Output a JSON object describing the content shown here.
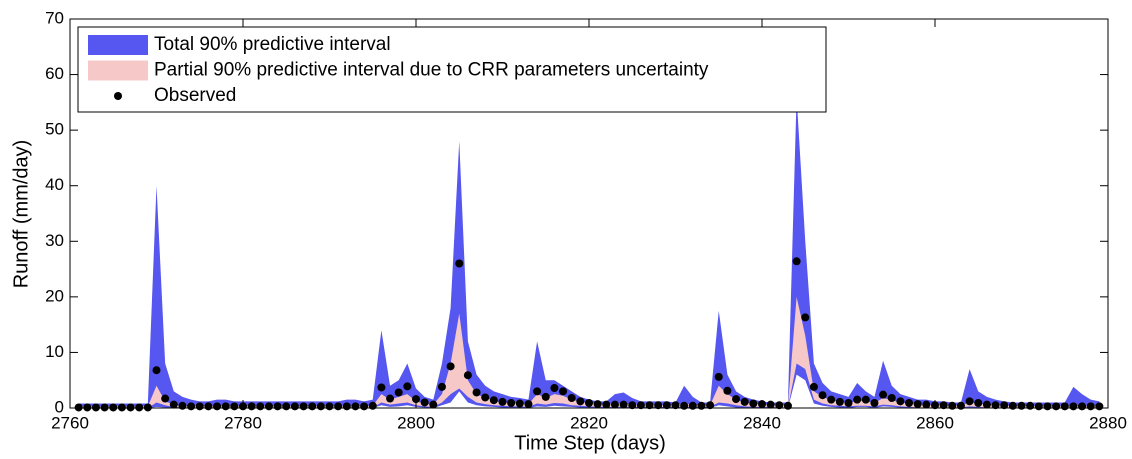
{
  "chart_data": {
    "type": "band",
    "xlabel": "Time Step (days)",
    "ylabel": "Runoff (mm/day)",
    "xlim": [
      2760,
      2880
    ],
    "ylim": [
      0,
      70
    ],
    "xticks": [
      2760,
      2780,
      2800,
      2820,
      2840,
      2860,
      2880
    ],
    "yticks": [
      0,
      10,
      20,
      30,
      40,
      50,
      60,
      70
    ],
    "grid": false,
    "legend": "upper-left",
    "x": [
      2761,
      2762,
      2763,
      2764,
      2765,
      2766,
      2767,
      2768,
      2769,
      2770,
      2771,
      2772,
      2773,
      2774,
      2775,
      2776,
      2777,
      2778,
      2779,
      2780,
      2781,
      2782,
      2783,
      2784,
      2785,
      2786,
      2787,
      2788,
      2789,
      2790,
      2791,
      2792,
      2793,
      2794,
      2795,
      2796,
      2797,
      2798,
      2799,
      2800,
      2801,
      2802,
      2803,
      2804,
      2805,
      2806,
      2807,
      2808,
      2809,
      2810,
      2811,
      2812,
      2813,
      2814,
      2815,
      2816,
      2817,
      2818,
      2819,
      2820,
      2821,
      2822,
      2823,
      2824,
      2825,
      2826,
      2827,
      2828,
      2829,
      2830,
      2831,
      2832,
      2833,
      2834,
      2835,
      2836,
      2837,
      2838,
      2839,
      2840,
      2841,
      2842,
      2843,
      2844,
      2845,
      2846,
      2847,
      2848,
      2849,
      2850,
      2851,
      2852,
      2853,
      2854,
      2855,
      2856,
      2857,
      2858,
      2859,
      2860,
      2861,
      2862,
      2863,
      2864,
      2865,
      2866,
      2867,
      2868,
      2869,
      2870,
      2871,
      2872,
      2873,
      2874,
      2875,
      2876,
      2877,
      2878,
      2879
    ],
    "series": [
      {
        "name": "Total 90% predictive interval",
        "kind": "band",
        "color": "#5656f0",
        "upper": [
          0.8,
          0.8,
          0.8,
          0.8,
          0.8,
          0.8,
          0.8,
          0.8,
          0.8,
          40,
          8,
          3,
          2,
          1.5,
          1.2,
          1.2,
          1.5,
          1.5,
          1.2,
          1.2,
          1.2,
          1.2,
          1.2,
          1.2,
          1.2,
          1.2,
          1.2,
          1.2,
          1.2,
          1.2,
          1.2,
          1.5,
          1.5,
          1.2,
          1.5,
          14,
          4,
          5,
          8,
          3.5,
          2,
          1.5,
          8,
          18,
          48,
          12,
          6,
          4,
          3,
          2.5,
          2,
          1.8,
          1.5,
          12,
          5,
          5,
          4,
          3,
          2,
          1.5,
          1.2,
          1.2,
          2.5,
          2.8,
          1.8,
          1.2,
          1.2,
          1.2,
          1.2,
          1,
          4,
          2,
          1,
          1,
          17.5,
          6,
          3,
          2,
          1.5,
          1.2,
          1,
          1,
          1,
          56,
          30,
          8,
          4.5,
          3,
          2.5,
          2,
          4.5,
          3,
          2,
          8.5,
          4,
          2.5,
          2,
          1.5,
          1.5,
          1.2,
          1.2,
          1,
          1,
          7,
          3,
          2,
          1.5,
          1.2,
          1,
          1,
          1,
          1,
          1,
          1,
          1,
          3.8,
          2.5,
          1.5,
          1.2
        ],
        "lower": [
          0,
          0,
          0,
          0,
          0,
          0,
          0,
          0,
          0,
          0.2,
          0.1,
          0,
          0,
          0,
          0,
          0,
          0,
          0,
          0,
          0,
          0,
          0,
          0,
          0,
          0,
          0,
          0,
          0,
          0,
          0,
          0,
          0,
          0,
          0,
          0,
          0.5,
          0.2,
          0.3,
          0.5,
          0.2,
          0.1,
          0,
          0.5,
          1,
          3,
          1,
          0.5,
          0.3,
          0.2,
          0.1,
          0.1,
          0,
          0,
          0.3,
          0.2,
          0.4,
          0.3,
          0.2,
          0.1,
          0,
          0,
          0,
          0,
          0,
          0,
          0,
          0,
          0,
          0,
          0,
          0,
          0,
          0,
          0,
          0.5,
          0.3,
          0.1,
          0,
          0,
          0,
          0,
          0,
          0,
          6,
          5,
          0.8,
          0.4,
          0.2,
          0.1,
          0,
          0.2,
          0.2,
          0,
          0.3,
          0.2,
          0.1,
          0,
          0,
          0,
          0,
          0,
          0,
          0,
          0.1,
          0,
          0,
          0,
          0,
          0,
          0,
          0,
          0,
          0,
          0,
          0,
          0,
          0,
          0,
          0
        ]
      },
      {
        "name": "Partial 90% predictive interval due to CRR parameters uncertainty",
        "kind": "band",
        "color": "#f6c8c8",
        "upper": [
          0.3,
          0.3,
          0.3,
          0.3,
          0.3,
          0.3,
          0.3,
          0.3,
          0.3,
          4,
          1.2,
          0.6,
          0.4,
          0.4,
          0.4,
          0.4,
          0.4,
          0.4,
          0.4,
          0.4,
          0.4,
          0.4,
          0.4,
          0.4,
          0.4,
          0.4,
          0.4,
          0.4,
          0.4,
          0.4,
          0.4,
          0.4,
          0.4,
          0.4,
          0.4,
          2.5,
          1.5,
          2,
          2.5,
          1.2,
          0.8,
          0.6,
          2.5,
          8,
          17,
          5,
          2.5,
          1.8,
          1.3,
          1,
          0.9,
          0.8,
          0.7,
          2.5,
          1.8,
          2.5,
          2.2,
          1.5,
          1.1,
          0.9,
          0.7,
          0.7,
          0.8,
          0.8,
          0.6,
          0.6,
          0.6,
          0.6,
          0.5,
          0.5,
          0.8,
          0.6,
          0.5,
          0.5,
          4,
          2.5,
          1.5,
          1,
          0.8,
          0.7,
          0.6,
          0.5,
          0.5,
          20,
          13,
          3,
          2,
          1.4,
          1.1,
          0.9,
          1.3,
          1.2,
          0.9,
          1.8,
          1.4,
          1,
          0.8,
          0.7,
          0.6,
          0.6,
          0.5,
          0.5,
          0.5,
          1,
          0.8,
          0.6,
          0.5,
          0.5,
          0.4,
          0.4,
          0.4,
          0.4,
          0.4,
          0.4,
          0.4,
          0.4,
          0.4,
          0.4,
          0.4
        ],
        "lower": [
          0,
          0,
          0,
          0,
          0,
          0,
          0,
          0,
          0,
          1,
          0.5,
          0.2,
          0.1,
          0.1,
          0.1,
          0.1,
          0.1,
          0.1,
          0.1,
          0.1,
          0.1,
          0.1,
          0.1,
          0.1,
          0.1,
          0.1,
          0.1,
          0.1,
          0.1,
          0.1,
          0.1,
          0.1,
          0.1,
          0.1,
          0.1,
          1,
          0.6,
          0.8,
          1,
          0.5,
          0.3,
          0.2,
          1,
          2.5,
          3.5,
          2,
          1,
          0.7,
          0.5,
          0.4,
          0.3,
          0.3,
          0.2,
          0.8,
          0.6,
          0.9,
          0.8,
          0.5,
          0.4,
          0.3,
          0.2,
          0.2,
          0.2,
          0.2,
          0.2,
          0.2,
          0.2,
          0.2,
          0.2,
          0.2,
          0.2,
          0.2,
          0.2,
          0.2,
          1,
          0.8,
          0.5,
          0.3,
          0.2,
          0.2,
          0.2,
          0.1,
          0.1,
          8,
          7,
          1.5,
          0.8,
          0.5,
          0.4,
          0.3,
          0.4,
          0.4,
          0.3,
          0.6,
          0.5,
          0.3,
          0.2,
          0.1,
          0.1,
          0.1,
          0.1,
          0.1,
          0.1,
          0.3,
          0.2,
          0.1,
          0.1,
          0.1,
          0.1,
          0.1,
          0.1,
          0.1,
          0.1,
          0.1,
          0.1,
          0.1,
          0.1,
          0.1,
          0.1
        ]
      },
      {
        "name": "Observed",
        "kind": "points",
        "color": "#000000",
        "values": [
          0.1,
          0.1,
          0.1,
          0.1,
          0.1,
          0.1,
          0.1,
          0.1,
          0.1,
          6.8,
          1.7,
          0.6,
          0.4,
          0.3,
          0.3,
          0.3,
          0.3,
          0.3,
          0.3,
          0.3,
          0.3,
          0.3,
          0.3,
          0.3,
          0.3,
          0.3,
          0.3,
          0.3,
          0.3,
          0.3,
          0.3,
          0.3,
          0.3,
          0.3,
          0.4,
          3.7,
          1.7,
          2.8,
          3.9,
          1.6,
          1,
          0.6,
          3.8,
          7.5,
          26,
          5.9,
          2.8,
          1.9,
          1.4,
          1.1,
          0.9,
          0.8,
          0.7,
          3,
          2,
          3.6,
          3,
          1.8,
          1.2,
          0.9,
          0.7,
          0.6,
          0.6,
          0.6,
          0.5,
          0.5,
          0.5,
          0.5,
          0.5,
          0.5,
          0.4,
          0.4,
          0.4,
          0.5,
          5.6,
          3.1,
          1.6,
          1.1,
          0.8,
          0.7,
          0.6,
          0.5,
          0.4,
          26.4,
          16.3,
          3.8,
          2.3,
          1.5,
          1.1,
          0.9,
          1.5,
          1.5,
          0.9,
          2.4,
          1.8,
          1.2,
          0.9,
          0.7,
          0.6,
          0.5,
          0.5,
          0.4,
          0.4,
          1.2,
          0.9,
          0.6,
          0.5,
          0.5,
          0.4,
          0.4,
          0.4,
          0.3,
          0.3,
          0.3,
          0.3,
          0.3,
          0.3,
          0.3,
          0.3
        ]
      }
    ]
  }
}
